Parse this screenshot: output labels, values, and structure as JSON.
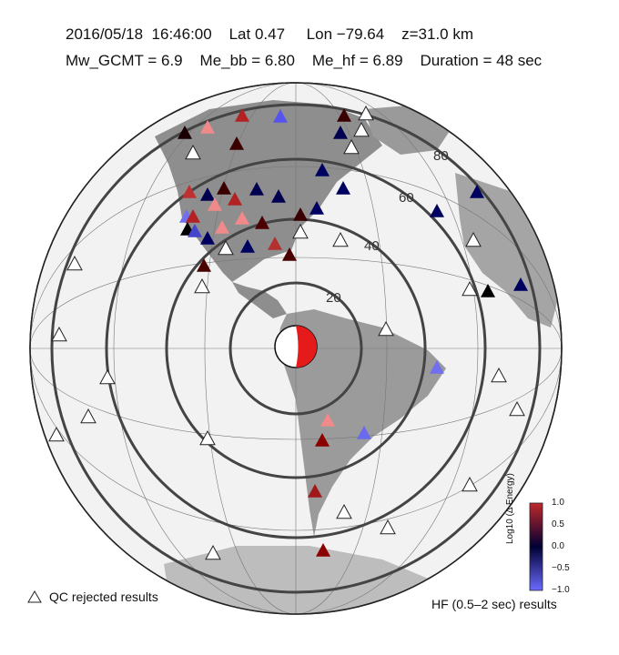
{
  "header": {
    "line1": "2016/05/18  16:46:00    Lat 0.47     Lon −79.64    z=31.0 km",
    "line2": "Mw_GCMT = 6.9    Me_bb = 6.80    Me_hf = 6.89    Duration = 48 sec"
  },
  "distance_rings": [
    "20",
    "40",
    "60",
    "80"
  ],
  "legend": {
    "qc_label": "QC rejected results",
    "hf_label": "HF (0.5–2 sec) results"
  },
  "colorbar": {
    "title": "Log10 (Δ Energy)",
    "ticks": [
      "1.0",
      "0.5",
      "0.0",
      "−0.5",
      "−1.0"
    ],
    "colors": [
      "#c0282b",
      "#000033",
      "#6a6aff"
    ]
  }
}
